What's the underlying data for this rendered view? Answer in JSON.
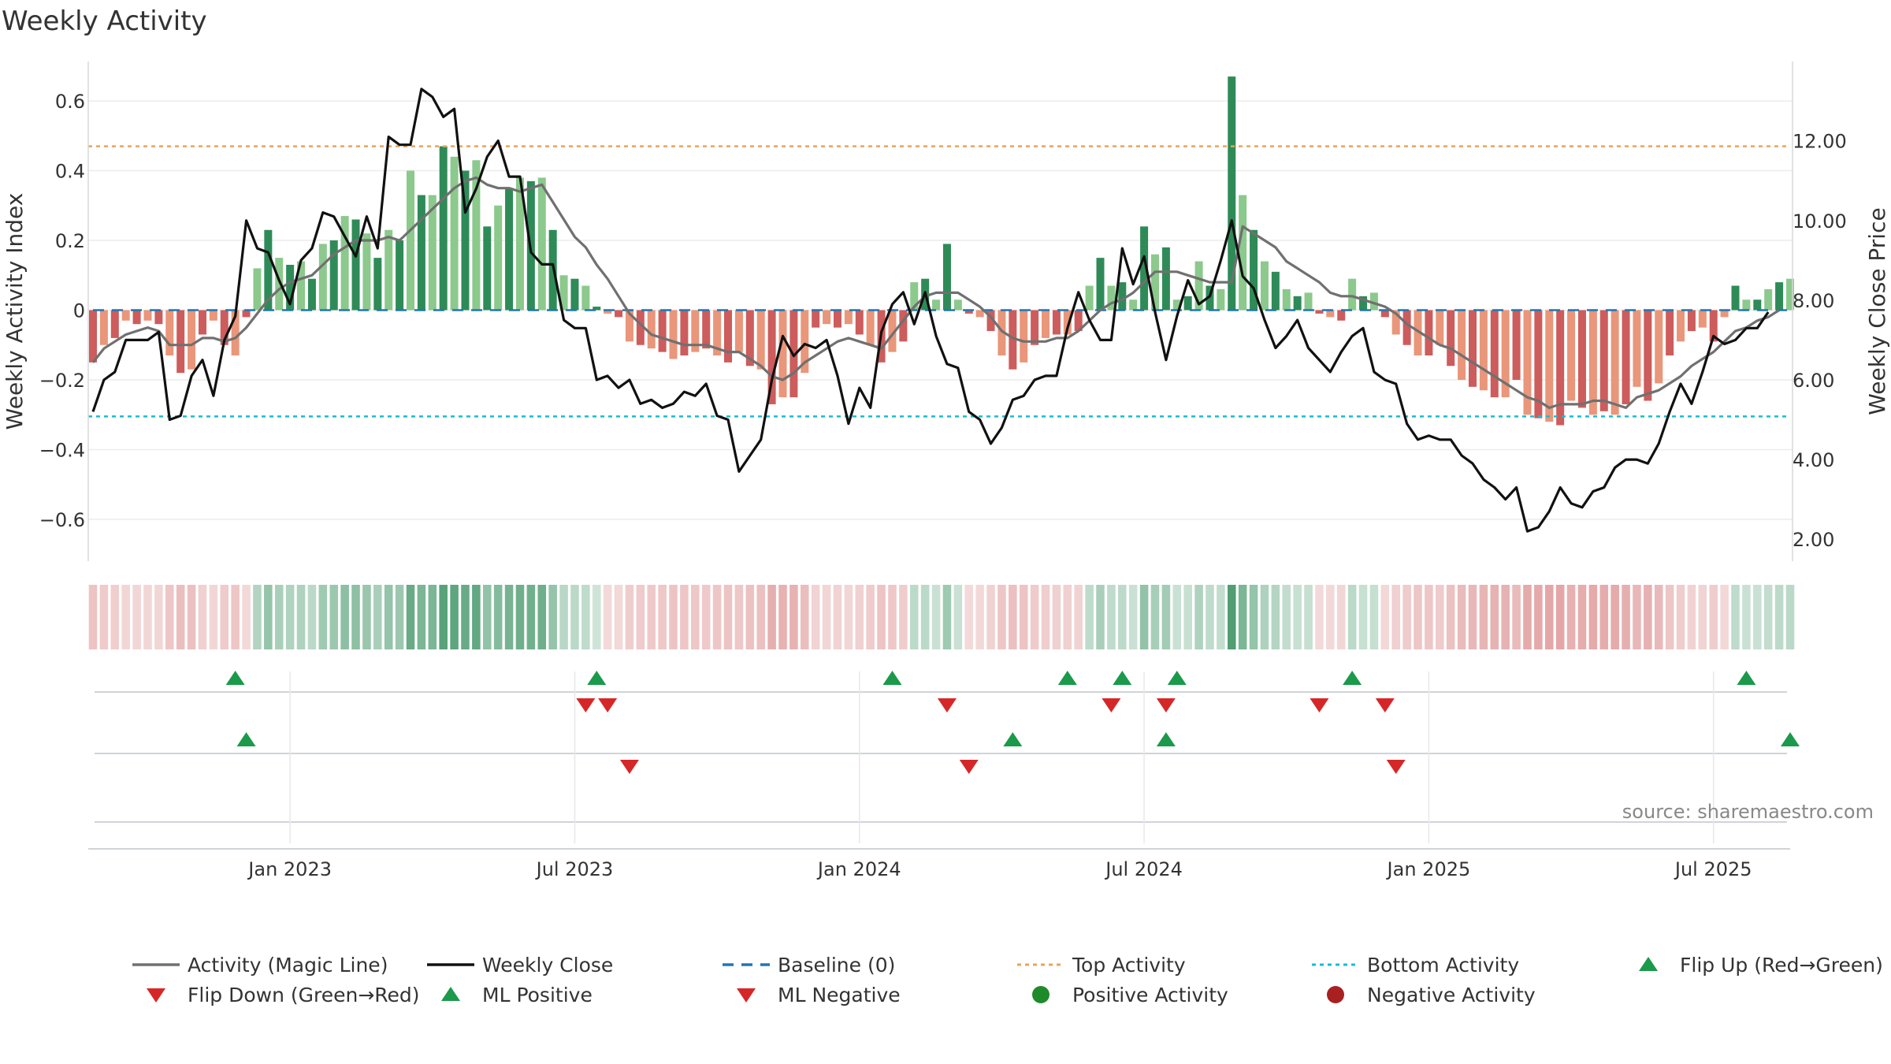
{
  "chart_data": {
    "type": "bar",
    "title": "Weekly Activity",
    "ylabel": "Weekly Activity Index",
    "y2label": "Weekly Close Price",
    "ylim": [
      -0.72,
      0.72
    ],
    "y2lim": [
      1.45,
      14.05
    ],
    "yticks": [
      {
        "v": 0.6,
        "label": "0.6"
      },
      {
        "v": 0.4,
        "label": "0.4"
      },
      {
        "v": 0.2,
        "label": "0.2"
      },
      {
        "v": 0,
        "label": "0"
      },
      {
        "v": -0.2,
        "label": "−0.2"
      },
      {
        "v": -0.4,
        "label": "−0.4"
      },
      {
        "v": -0.6,
        "label": "−0.6"
      }
    ],
    "y2ticks": [
      {
        "v": 12,
        "label": "12.00"
      },
      {
        "v": 10,
        "label": "10.00"
      },
      {
        "v": 8,
        "label": "8.00"
      },
      {
        "v": 6,
        "label": "6.00"
      },
      {
        "v": 4,
        "label": "4.00"
      },
      {
        "v": 2,
        "label": "2.00"
      }
    ],
    "xticks": [
      {
        "week": 18,
        "label": "Jan 2023"
      },
      {
        "week": 44,
        "label": "Jul 2023"
      },
      {
        "week": 70,
        "label": "Jan 2024"
      },
      {
        "week": 96,
        "label": "Jul 2024"
      },
      {
        "week": 122,
        "label": "Jan 2025"
      },
      {
        "week": 148,
        "label": "Jul 2025"
      }
    ],
    "activity_values": [
      -0.15,
      -0.1,
      -0.08,
      -0.03,
      -0.04,
      -0.03,
      -0.04,
      -0.13,
      -0.18,
      -0.17,
      -0.07,
      -0.03,
      -0.1,
      -0.13,
      -0.02,
      0.12,
      0.23,
      0.15,
      0.13,
      0.14,
      0.09,
      0.19,
      0.2,
      0.27,
      0.26,
      0.22,
      0.15,
      0.23,
      0.2,
      0.4,
      0.33,
      0.33,
      0.47,
      0.44,
      0.4,
      0.43,
      0.24,
      0.3,
      0.35,
      0.38,
      0.37,
      0.38,
      0.23,
      0.1,
      0.09,
      0.07,
      0.01,
      -0.01,
      -0.02,
      -0.09,
      -0.1,
      -0.11,
      -0.12,
      -0.14,
      -0.13,
      -0.12,
      -0.11,
      -0.13,
      -0.15,
      -0.12,
      -0.16,
      -0.17,
      -0.27,
      -0.25,
      -0.25,
      -0.18,
      -0.05,
      -0.04,
      -0.05,
      -0.04,
      -0.07,
      -0.1,
      -0.15,
      -0.12,
      -0.09,
      0.08,
      0.09,
      0.03,
      0.19,
      0.03,
      -0.01,
      -0.02,
      -0.06,
      -0.13,
      -0.17,
      -0.15,
      -0.1,
      -0.08,
      -0.07,
      -0.07,
      -0.06,
      0.07,
      0.15,
      0.07,
      0.08,
      0.03,
      0.24,
      0.16,
      0.18,
      0.03,
      0.04,
      0.14,
      0.07,
      0.06,
      0.67,
      0.33,
      0.23,
      0.14,
      0.11,
      0.06,
      0.04,
      0.05,
      -0.01,
      -0.02,
      -0.03,
      0.09,
      0.04,
      0.05,
      -0.02,
      -0.07,
      -0.1,
      -0.13,
      -0.13,
      -0.1,
      -0.16,
      -0.2,
      -0.22,
      -0.23,
      -0.25,
      -0.25,
      -0.2,
      -0.3,
      -0.31,
      -0.32,
      -0.33,
      -0.26,
      -0.28,
      -0.3,
      -0.29,
      -0.3,
      -0.27,
      -0.22,
      -0.26,
      -0.21,
      -0.13,
      -0.09,
      -0.06,
      -0.05,
      -0.09,
      -0.02,
      0.07,
      0.03,
      0.03,
      0.06,
      0.08,
      0.09
    ],
    "close_prices": [
      5.2,
      6.0,
      6.2,
      7.0,
      7.0,
      7.0,
      7.2,
      5.0,
      5.1,
      6.1,
      6.5,
      5.6,
      7.0,
      7.6,
      10.0,
      9.3,
      9.2,
      8.5,
      7.9,
      9.0,
      9.3,
      10.2,
      10.1,
      9.6,
      9.1,
      10.1,
      9.3,
      12.1,
      11.9,
      11.9,
      13.3,
      13.1,
      12.6,
      12.8,
      10.2,
      10.8,
      11.6,
      12.0,
      11.1,
      11.1,
      9.2,
      8.9,
      8.9,
      7.5,
      7.3,
      7.3,
      6.0,
      6.1,
      5.8,
      6.0,
      5.4,
      5.5,
      5.3,
      5.4,
      5.7,
      5.6,
      5.9,
      5.1,
      5.0,
      3.7,
      4.1,
      4.5,
      6.0,
      7.1,
      6.6,
      6.9,
      6.8,
      7.0,
      6.1,
      4.9,
      5.8,
      5.3,
      7.2,
      7.9,
      8.2,
      7.4,
      8.2,
      7.1,
      6.4,
      6.3,
      5.2,
      5.0,
      4.4,
      4.8,
      5.5,
      5.6,
      6.0,
      6.1,
      6.1,
      7.3,
      8.2,
      7.5,
      7.0,
      7.0,
      9.3,
      8.4,
      9.1,
      7.7,
      6.5,
      7.6,
      8.5,
      7.9,
      8.1,
      9.0,
      10.0,
      8.6,
      8.3,
      7.5,
      6.8,
      7.1,
      7.5,
      6.8,
      6.5,
      6.2,
      6.7,
      7.1,
      7.3,
      6.2,
      6.0,
      5.9,
      4.9,
      4.5,
      4.6,
      4.5,
      4.5,
      4.1,
      3.9,
      3.5,
      3.3,
      3.0,
      3.3,
      2.2,
      2.3,
      2.7,
      3.3,
      2.9,
      2.8,
      3.2,
      3.3,
      3.8,
      4.0,
      4.0,
      3.9,
      4.4,
      5.2,
      5.9,
      5.4,
      6.2,
      7.1,
      6.9,
      7.0,
      7.3,
      7.3,
      7.7
    ],
    "magic_line": [
      -0.15,
      -0.11,
      -0.09,
      -0.07,
      -0.06,
      -0.05,
      -0.06,
      -0.1,
      -0.1,
      -0.1,
      -0.08,
      -0.08,
      -0.09,
      -0.08,
      -0.05,
      -0.01,
      0.03,
      0.06,
      0.08,
      0.09,
      0.1,
      0.13,
      0.16,
      0.18,
      0.2,
      0.2,
      0.2,
      0.21,
      0.2,
      0.23,
      0.26,
      0.29,
      0.32,
      0.35,
      0.37,
      0.38,
      0.36,
      0.35,
      0.35,
      0.34,
      0.35,
      0.36,
      0.31,
      0.26,
      0.21,
      0.18,
      0.13,
      0.09,
      0.04,
      -0.01,
      -0.04,
      -0.07,
      -0.08,
      -0.09,
      -0.1,
      -0.1,
      -0.1,
      -0.11,
      -0.12,
      -0.12,
      -0.14,
      -0.16,
      -0.19,
      -0.2,
      -0.18,
      -0.15,
      -0.13,
      -0.11,
      -0.09,
      -0.08,
      -0.09,
      -0.1,
      -0.11,
      -0.07,
      -0.03,
      0.01,
      0.04,
      0.05,
      0.05,
      0.05,
      0.03,
      0.01,
      -0.02,
      -0.06,
      -0.08,
      -0.09,
      -0.09,
      -0.09,
      -0.08,
      -0.08,
      -0.06,
      -0.03,
      0.0,
      0.02,
      0.03,
      0.05,
      0.08,
      0.11,
      0.11,
      0.11,
      0.1,
      0.09,
      0.08,
      0.08,
      0.08,
      0.24,
      0.22,
      0.2,
      0.18,
      0.14,
      0.12,
      0.1,
      0.08,
      0.05,
      0.04,
      0.04,
      0.03,
      0.02,
      0.01,
      -0.01,
      -0.04,
      -0.06,
      -0.08,
      -0.1,
      -0.11,
      -0.13,
      -0.15,
      -0.17,
      -0.19,
      -0.21,
      -0.23,
      -0.25,
      -0.26,
      -0.28,
      -0.27,
      -0.27,
      -0.27,
      -0.26,
      -0.26,
      -0.27,
      -0.28,
      -0.25,
      -0.24,
      -0.23,
      -0.21,
      -0.19,
      -0.16,
      -0.14,
      -0.12,
      -0.09,
      -0.06,
      -0.05,
      -0.03,
      -0.02,
      0.0
    ],
    "baseline": 0,
    "top_activity": 0.47,
    "bottom_activity": -0.305,
    "flip_up_weeks": [
      13,
      46,
      73,
      89,
      94,
      99,
      115,
      151
    ],
    "flip_down_weeks": [
      45,
      47,
      78,
      93,
      98,
      112,
      118
    ],
    "ml_positive_weeks": [
      14,
      84,
      98,
      155
    ],
    "ml_negative_weeks": [
      49,
      80,
      119
    ],
    "source": "source: sharemaestro.com",
    "legend": [
      {
        "label": "Activity (Magic Line)",
        "kind": "line",
        "color": "#707070"
      },
      {
        "label": "Weekly Close",
        "kind": "line",
        "color": "#111111"
      },
      {
        "label": "Baseline (0)",
        "kind": "dash",
        "color": "#1f77b4"
      },
      {
        "label": "Top Activity",
        "kind": "dot",
        "color": "#e8a45c"
      },
      {
        "label": "Bottom Activity",
        "kind": "dot",
        "color": "#17becf"
      },
      {
        "label": "Flip Up (Red→Green)",
        "kind": "tri-up",
        "color": "#1a9a4a"
      },
      {
        "label": "Flip Down (Green→Red)",
        "kind": "tri-down",
        "color": "#d62728"
      },
      {
        "label": "ML Positive",
        "kind": "tri-up",
        "color": "#1a9a4a"
      },
      {
        "label": "ML Negative",
        "kind": "tri-down",
        "color": "#d62728"
      },
      {
        "label": "Positive Activity",
        "kind": "circle",
        "color": "#1f8a2a"
      },
      {
        "label": "Negative Activity",
        "kind": "circle",
        "color": "#a82020"
      }
    ],
    "colors": {
      "pos_strong": "#2e8b57",
      "pos_light": "#8cc98c",
      "neg_strong": "#cd5c5c",
      "neg_light": "#e9967a",
      "magic": "#707070",
      "close": "#111111",
      "baseline": "#1f77b4",
      "top": "#e8a45c",
      "bottom": "#17becf",
      "up": "#1a9a4a",
      "down": "#d62728"
    }
  }
}
